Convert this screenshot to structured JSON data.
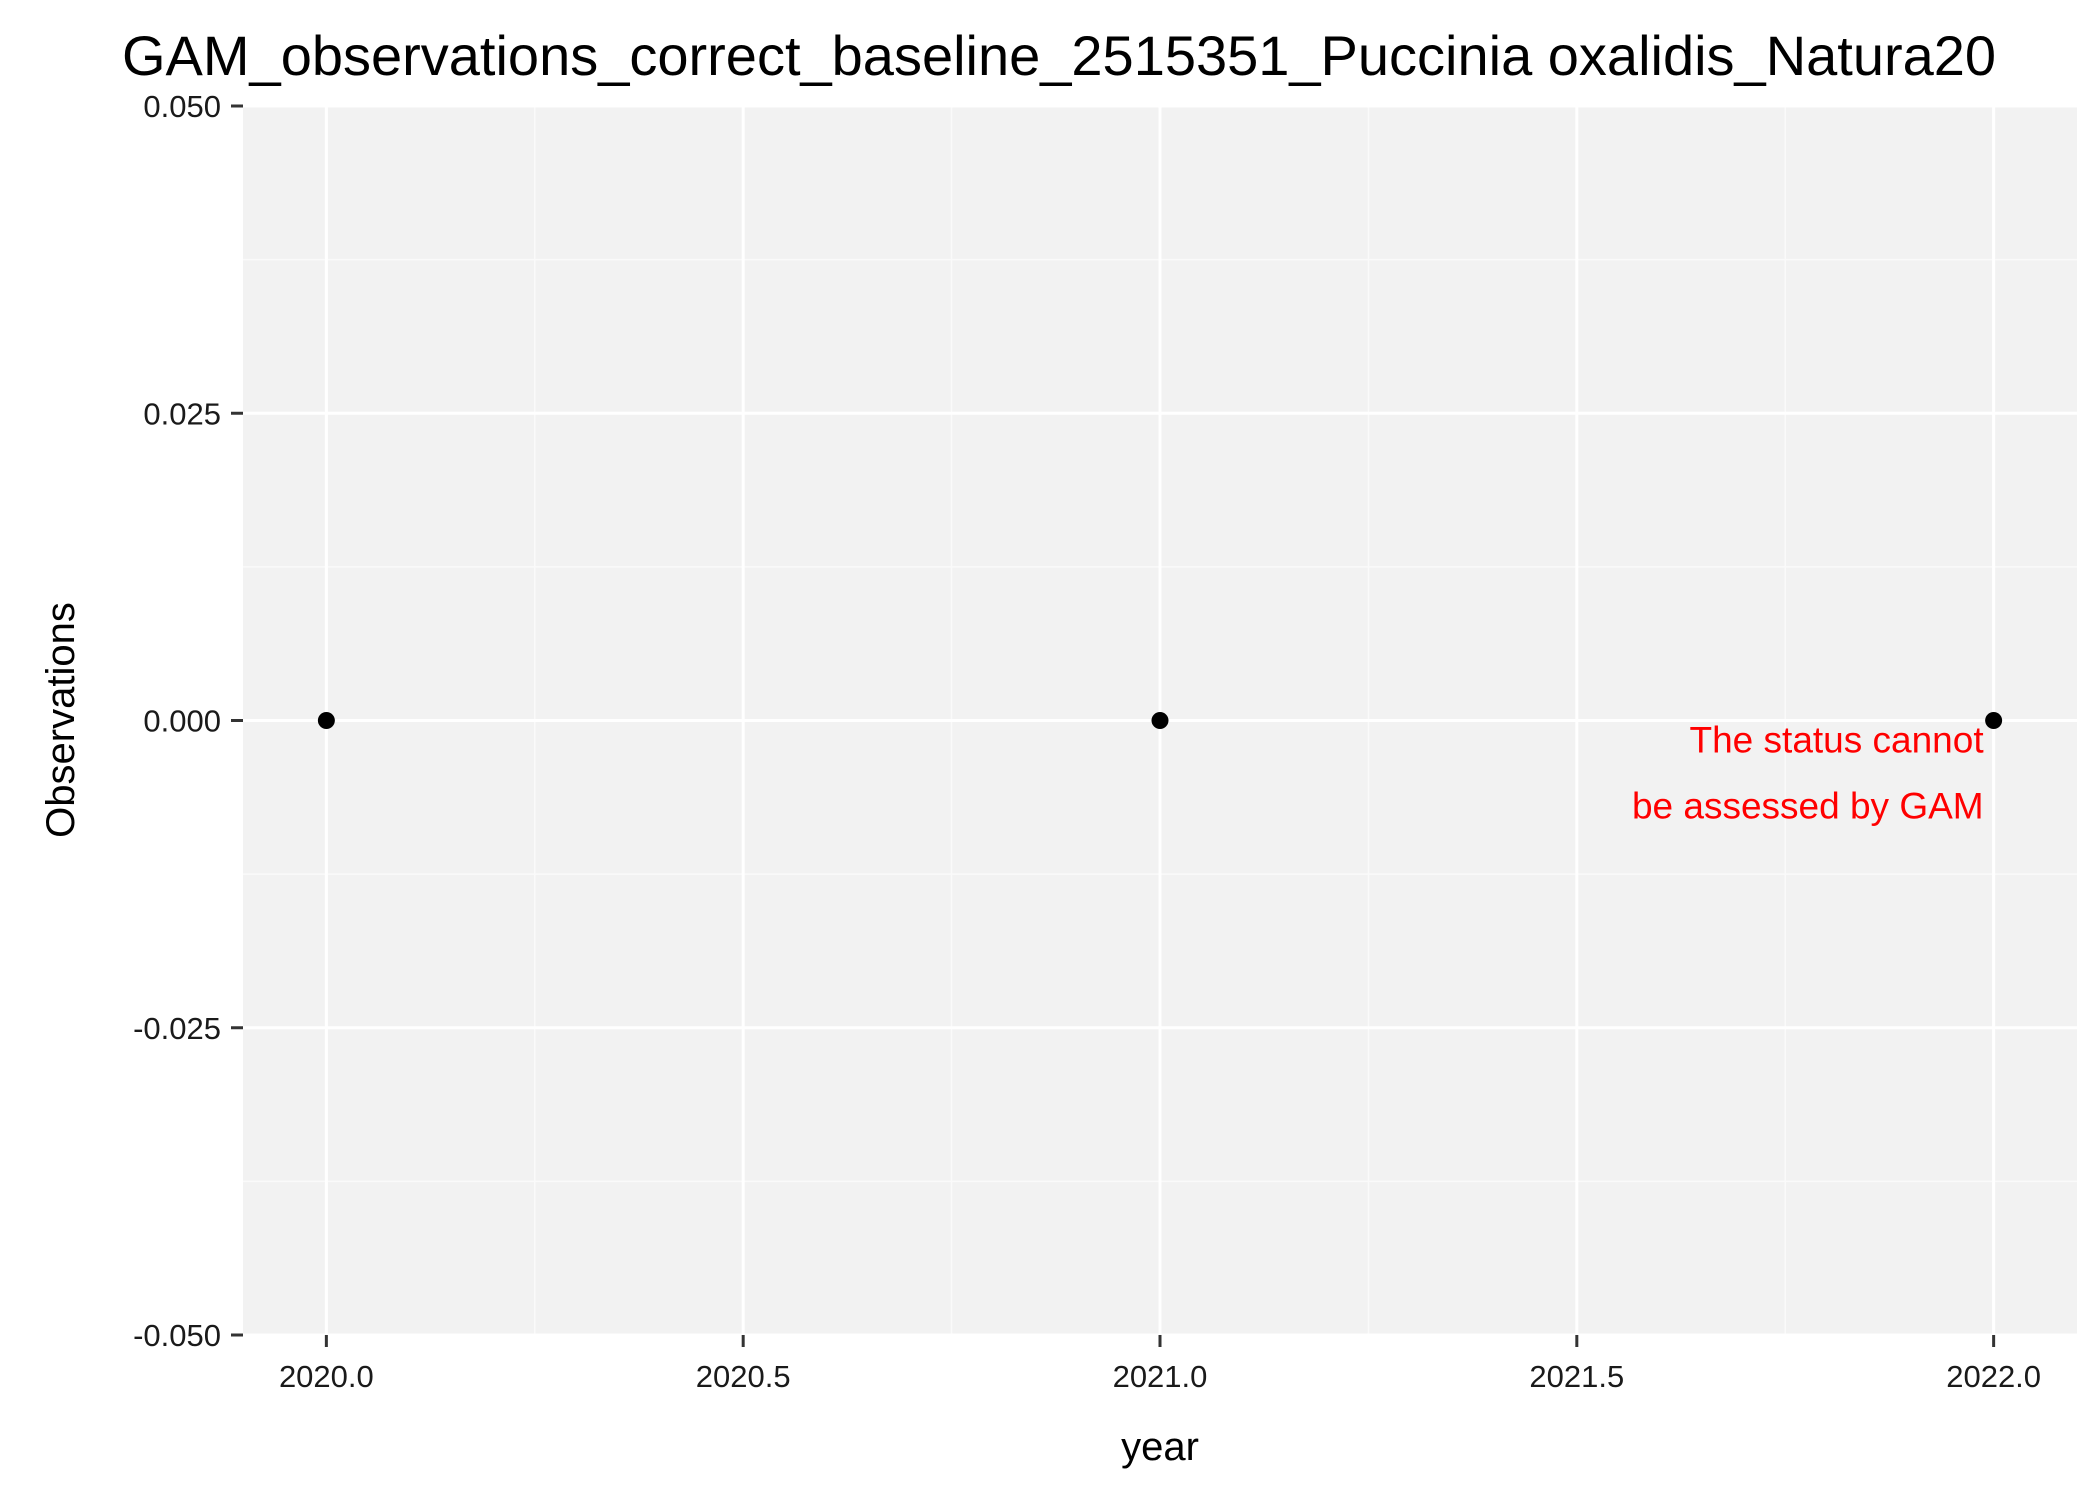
{
  "chart_data": {
    "type": "scatter",
    "title": "GAM_observations_correct_baseline_2515351_Puccinia oxalidis_Natura20",
    "xlabel": "year",
    "ylabel": "Observations",
    "xlim": [
      2019.9,
      2022.1
    ],
    "ylim": [
      -0.05,
      0.05
    ],
    "x_ticks": [
      2020.0,
      2020.5,
      2021.0,
      2021.5,
      2022.0
    ],
    "x_tick_labels": [
      "2020.0",
      "2020.5",
      "2021.0",
      "2021.5",
      "2022.0"
    ],
    "y_ticks": [
      -0.05,
      -0.025,
      0.0,
      0.025,
      0.05
    ],
    "y_tick_labels": [
      "-0.050",
      "-0.025",
      "0.000",
      "0.025",
      "0.050"
    ],
    "grid": true,
    "points": [
      {
        "x": 2020,
        "y": 0
      },
      {
        "x": 2021,
        "y": 0
      },
      {
        "x": 2022,
        "y": 0
      }
    ],
    "annotation": {
      "lines": [
        "The status cannot",
        "be assessed by GAM"
      ],
      "color": "#ff0000"
    },
    "colors": {
      "panel_background": "#f2f2f2",
      "grid_major": "#ffffff",
      "grid_minor": "#fafafa",
      "points": "#000000"
    }
  }
}
